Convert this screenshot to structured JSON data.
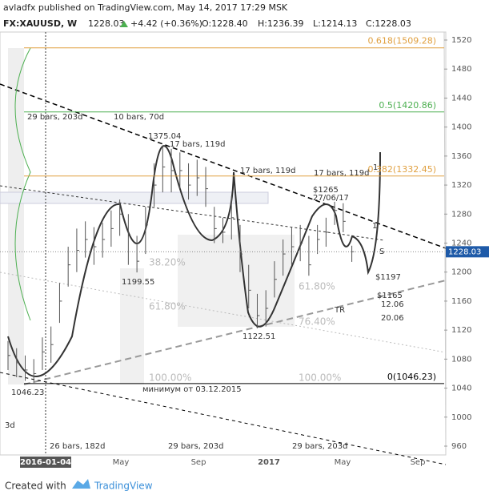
{
  "chart_data": {
    "type": "ohlc",
    "header": {
      "line1": "avladfx published on TradingView.com, May 14, 2017 17:29 MSK",
      "symbol": "FX:XAUUSD, W",
      "price": "1228.03",
      "change": "+4.42 (+0.36%)",
      "open": "O:1228.40",
      "high": "H:1236.39",
      "low": "L:1214.13",
      "close": "C:1228.03"
    },
    "highs": [
      1105,
      1095,
      1085,
      1080,
      1110,
      1125,
      1185,
      1235,
      1260,
      1270,
      1262,
      1268,
      1285,
      1300,
      1280,
      1250,
      1290,
      1350,
      1375.04,
      1370,
      1365,
      1350,
      1355,
      1345,
      1290,
      1275,
      1305,
      1265,
      1210,
      1170,
      1175,
      1215,
      1245,
      1262,
      1265,
      1250,
      1265,
      1275,
      1297,
      1295,
      1236.39
    ],
    "lows": [
      1065,
      1055,
      1050,
      1046.23,
      1065,
      1075,
      1130,
      1180,
      1200,
      1220,
      1210,
      1220,
      1235,
      1250,
      1210,
      1199.55,
      1225,
      1290,
      1310,
      1310,
      1315,
      1300,
      1305,
      1290,
      1240,
      1240,
      1245,
      1200,
      1150,
      1122.51,
      1125,
      1165,
      1195,
      1210,
      1215,
      1195,
      1225,
      1235,
      1265,
      1255,
      1214.13
    ],
    "closes": [
      1085,
      1075,
      1065,
      1060,
      1090,
      1100,
      1160,
      1210,
      1230,
      1245,
      1235,
      1245,
      1260,
      1280,
      1250,
      1215,
      1265,
      1320,
      1345,
      1340,
      1340,
      1320,
      1330,
      1315,
      1260,
      1255,
      1275,
      1225,
      1175,
      1140,
      1150,
      1190,
      1225,
      1235,
      1240,
      1210,
      1245,
      1255,
      1285,
      1270,
      1228.03
    ],
    "ylim": [
      960,
      1520
    ],
    "yticks": [
      960,
      1000,
      1040,
      1080,
      1120,
      1160,
      1200,
      1240,
      1280,
      1320,
      1360,
      1400,
      1440,
      1480,
      1520
    ],
    "current": 1228.03,
    "x_labels": [
      "2016-01-04",
      "May",
      "Sep",
      "2017",
      "May",
      "Sep"
    ],
    "fib_levels": [
      {
        "label": "0.618(1509.28)",
        "value": 1509.28,
        "color": "#e0a040"
      },
      {
        "label": "0.5(1420.86)",
        "value": 1420.86,
        "color": "#4caf50"
      },
      {
        "label": "0.382(1332.45)",
        "value": 1332.45,
        "color": "#e0a040"
      },
      {
        "label": "0(1046.23)",
        "value": 1046.23,
        "color": "#000000"
      }
    ],
    "annotations": [
      "29 bars, 203d",
      "10 bars, 70d",
      "17 bars, 119d",
      "17 bars, 119d",
      "17 bars, 119d",
      "1375.04",
      "1199.55",
      "38.20%",
      "61.80%",
      "61.80%",
      "76.40%",
      "100.00%",
      "100.00%",
      "1122.51",
      "$1265",
      "27/06/17",
      "1",
      "1",
      "S",
      "$1197",
      "$1165",
      "TR",
      "12.06",
      "20.06",
      "1046.23",
      "минимум  от 03.12.2015",
      "3d",
      "26 bars, 182d",
      "29 bars, 203d",
      "29 bars, 203d"
    ],
    "footer": {
      "created": "Created with",
      "brand": "TradingView"
    }
  }
}
